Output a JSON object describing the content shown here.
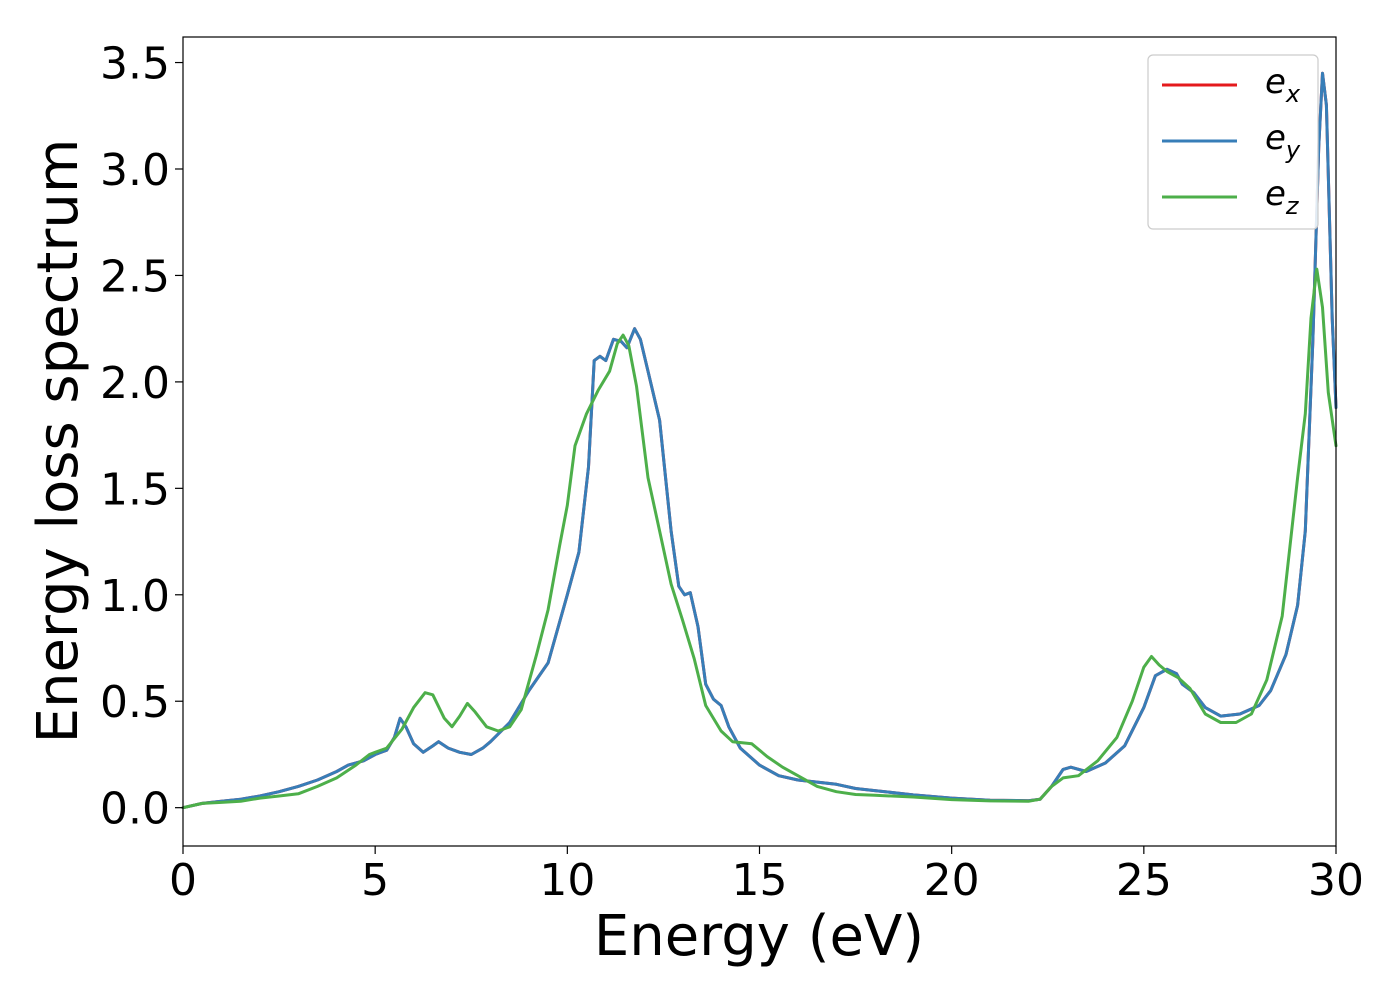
{
  "chart_data": {
    "type": "line",
    "xlabel": "Energy (eV)",
    "ylabel": "Energy loss spectrum",
    "xlim": [
      0,
      30
    ],
    "ylim": [
      -0.18,
      3.62
    ],
    "xticks": [
      0,
      5,
      10,
      15,
      20,
      25,
      30
    ],
    "xtick_labels": [
      "0",
      "5",
      "10",
      "15",
      "20",
      "25",
      "30"
    ],
    "yticks": [
      0.0,
      0.5,
      1.0,
      1.5,
      2.0,
      2.5,
      3.0,
      3.5
    ],
    "ytick_labels": [
      "0.0",
      "0.5",
      "1.0",
      "1.5",
      "2.0",
      "2.5",
      "3.0",
      "3.5"
    ],
    "grid": false,
    "legend_position": "top-right",
    "series": [
      {
        "name": "e_x",
        "legend_base": "e",
        "legend_sub": "x",
        "color": "#e41a1c",
        "points": [
          [
            0,
            0.0
          ],
          [
            0.5,
            0.02
          ],
          [
            1,
            0.03
          ],
          [
            1.5,
            0.04
          ],
          [
            2,
            0.055
          ],
          [
            2.5,
            0.075
          ],
          [
            3,
            0.1
          ],
          [
            3.5,
            0.13
          ],
          [
            4,
            0.17
          ],
          [
            4.3,
            0.2
          ],
          [
            4.7,
            0.22
          ],
          [
            5,
            0.25
          ],
          [
            5.3,
            0.27
          ],
          [
            5.5,
            0.33
          ],
          [
            5.65,
            0.42
          ],
          [
            5.8,
            0.38
          ],
          [
            6,
            0.3
          ],
          [
            6.25,
            0.26
          ],
          [
            6.5,
            0.29
          ],
          [
            6.65,
            0.31
          ],
          [
            6.9,
            0.28
          ],
          [
            7.2,
            0.26
          ],
          [
            7.5,
            0.25
          ],
          [
            7.8,
            0.28
          ],
          [
            8,
            0.31
          ],
          [
            8.5,
            0.4
          ],
          [
            9,
            0.55
          ],
          [
            9.5,
            0.68
          ],
          [
            10,
            1.0
          ],
          [
            10.3,
            1.2
          ],
          [
            10.55,
            1.6
          ],
          [
            10.7,
            2.1
          ],
          [
            10.85,
            2.12
          ],
          [
            11,
            2.1
          ],
          [
            11.2,
            2.2
          ],
          [
            11.4,
            2.19
          ],
          [
            11.55,
            2.16
          ],
          [
            11.75,
            2.25
          ],
          [
            11.9,
            2.2
          ],
          [
            12.1,
            2.05
          ],
          [
            12.4,
            1.82
          ],
          [
            12.7,
            1.3
          ],
          [
            12.9,
            1.04
          ],
          [
            13.05,
            1.0
          ],
          [
            13.2,
            1.01
          ],
          [
            13.4,
            0.85
          ],
          [
            13.6,
            0.58
          ],
          [
            13.8,
            0.51
          ],
          [
            14,
            0.48
          ],
          [
            14.2,
            0.38
          ],
          [
            14.5,
            0.28
          ],
          [
            15,
            0.2
          ],
          [
            15.5,
            0.15
          ],
          [
            16,
            0.13
          ],
          [
            17,
            0.11
          ],
          [
            17.5,
            0.09
          ],
          [
            18,
            0.08
          ],
          [
            19,
            0.06
          ],
          [
            20,
            0.045
          ],
          [
            21,
            0.035
          ],
          [
            22,
            0.033
          ],
          [
            22.3,
            0.04
          ],
          [
            22.6,
            0.1
          ],
          [
            22.9,
            0.18
          ],
          [
            23.1,
            0.19
          ],
          [
            23.5,
            0.17
          ],
          [
            24,
            0.21
          ],
          [
            24.5,
            0.29
          ],
          [
            25,
            0.47
          ],
          [
            25.3,
            0.62
          ],
          [
            25.6,
            0.65
          ],
          [
            25.85,
            0.63
          ],
          [
            26,
            0.58
          ],
          [
            26.3,
            0.54
          ],
          [
            26.6,
            0.47
          ],
          [
            27,
            0.43
          ],
          [
            27.5,
            0.44
          ],
          [
            28,
            0.48
          ],
          [
            28.3,
            0.55
          ],
          [
            28.7,
            0.72
          ],
          [
            29,
            0.95
          ],
          [
            29.2,
            1.3
          ],
          [
            29.4,
            2.2
          ],
          [
            29.55,
            3.1
          ],
          [
            29.65,
            3.45
          ],
          [
            29.75,
            3.3
          ],
          [
            29.9,
            2.3
          ],
          [
            30,
            1.88
          ]
        ]
      },
      {
        "name": "e_y",
        "legend_base": "e",
        "legend_sub": "y",
        "color": "#377eb8",
        "points": [
          [
            0,
            0.0
          ],
          [
            0.5,
            0.02
          ],
          [
            1,
            0.03
          ],
          [
            1.5,
            0.04
          ],
          [
            2,
            0.055
          ],
          [
            2.5,
            0.075
          ],
          [
            3,
            0.1
          ],
          [
            3.5,
            0.13
          ],
          [
            4,
            0.17
          ],
          [
            4.3,
            0.2
          ],
          [
            4.7,
            0.22
          ],
          [
            5,
            0.25
          ],
          [
            5.3,
            0.27
          ],
          [
            5.5,
            0.33
          ],
          [
            5.65,
            0.42
          ],
          [
            5.8,
            0.38
          ],
          [
            6,
            0.3
          ],
          [
            6.25,
            0.26
          ],
          [
            6.5,
            0.29
          ],
          [
            6.65,
            0.31
          ],
          [
            6.9,
            0.28
          ],
          [
            7.2,
            0.26
          ],
          [
            7.5,
            0.25
          ],
          [
            7.8,
            0.28
          ],
          [
            8,
            0.31
          ],
          [
            8.5,
            0.4
          ],
          [
            9,
            0.55
          ],
          [
            9.5,
            0.68
          ],
          [
            10,
            1.0
          ],
          [
            10.3,
            1.2
          ],
          [
            10.55,
            1.6
          ],
          [
            10.7,
            2.1
          ],
          [
            10.85,
            2.12
          ],
          [
            11,
            2.1
          ],
          [
            11.2,
            2.2
          ],
          [
            11.4,
            2.19
          ],
          [
            11.55,
            2.16
          ],
          [
            11.75,
            2.25
          ],
          [
            11.9,
            2.2
          ],
          [
            12.1,
            2.05
          ],
          [
            12.4,
            1.82
          ],
          [
            12.7,
            1.3
          ],
          [
            12.9,
            1.04
          ],
          [
            13.05,
            1.0
          ],
          [
            13.2,
            1.01
          ],
          [
            13.4,
            0.85
          ],
          [
            13.6,
            0.58
          ],
          [
            13.8,
            0.51
          ],
          [
            14,
            0.48
          ],
          [
            14.2,
            0.38
          ],
          [
            14.5,
            0.28
          ],
          [
            15,
            0.2
          ],
          [
            15.5,
            0.15
          ],
          [
            16,
            0.13
          ],
          [
            17,
            0.11
          ],
          [
            17.5,
            0.09
          ],
          [
            18,
            0.08
          ],
          [
            19,
            0.06
          ],
          [
            20,
            0.045
          ],
          [
            21,
            0.035
          ],
          [
            22,
            0.033
          ],
          [
            22.3,
            0.04
          ],
          [
            22.6,
            0.1
          ],
          [
            22.9,
            0.18
          ],
          [
            23.1,
            0.19
          ],
          [
            23.5,
            0.17
          ],
          [
            24,
            0.21
          ],
          [
            24.5,
            0.29
          ],
          [
            25,
            0.47
          ],
          [
            25.3,
            0.62
          ],
          [
            25.6,
            0.65
          ],
          [
            25.85,
            0.63
          ],
          [
            26,
            0.58
          ],
          [
            26.3,
            0.54
          ],
          [
            26.6,
            0.47
          ],
          [
            27,
            0.43
          ],
          [
            27.5,
            0.44
          ],
          [
            28,
            0.48
          ],
          [
            28.3,
            0.55
          ],
          [
            28.7,
            0.72
          ],
          [
            29,
            0.95
          ],
          [
            29.2,
            1.3
          ],
          [
            29.4,
            2.2
          ],
          [
            29.55,
            3.1
          ],
          [
            29.65,
            3.45
          ],
          [
            29.75,
            3.3
          ],
          [
            29.9,
            2.3
          ],
          [
            30,
            1.88
          ]
        ]
      },
      {
        "name": "e_z",
        "legend_base": "e",
        "legend_sub": "z",
        "color": "#4daf4a",
        "points": [
          [
            0,
            0.0
          ],
          [
            0.5,
            0.02
          ],
          [
            1,
            0.025
          ],
          [
            1.5,
            0.03
          ],
          [
            2,
            0.045
          ],
          [
            2.5,
            0.055
          ],
          [
            3,
            0.065
          ],
          [
            3.5,
            0.1
          ],
          [
            4,
            0.14
          ],
          [
            4.5,
            0.2
          ],
          [
            4.85,
            0.25
          ],
          [
            5,
            0.26
          ],
          [
            5.3,
            0.28
          ],
          [
            5.7,
            0.37
          ],
          [
            6,
            0.47
          ],
          [
            6.3,
            0.54
          ],
          [
            6.5,
            0.53
          ],
          [
            6.8,
            0.42
          ],
          [
            7,
            0.38
          ],
          [
            7.2,
            0.43
          ],
          [
            7.4,
            0.49
          ],
          [
            7.6,
            0.45
          ],
          [
            7.9,
            0.38
          ],
          [
            8.2,
            0.36
          ],
          [
            8.5,
            0.38
          ],
          [
            8.8,
            0.46
          ],
          [
            9.2,
            0.72
          ],
          [
            9.5,
            0.93
          ],
          [
            9.8,
            1.23
          ],
          [
            10,
            1.42
          ],
          [
            10.2,
            1.7
          ],
          [
            10.5,
            1.85
          ],
          [
            10.8,
            1.96
          ],
          [
            11.1,
            2.05
          ],
          [
            11.3,
            2.18
          ],
          [
            11.45,
            2.22
          ],
          [
            11.6,
            2.17
          ],
          [
            11.8,
            1.98
          ],
          [
            12.1,
            1.55
          ],
          [
            12.4,
            1.3
          ],
          [
            12.7,
            1.05
          ],
          [
            13,
            0.88
          ],
          [
            13.3,
            0.7
          ],
          [
            13.6,
            0.48
          ],
          [
            14,
            0.36
          ],
          [
            14.3,
            0.31
          ],
          [
            14.8,
            0.3
          ],
          [
            15.2,
            0.24
          ],
          [
            15.6,
            0.19
          ],
          [
            16,
            0.15
          ],
          [
            16.5,
            0.1
          ],
          [
            17,
            0.075
          ],
          [
            17.5,
            0.062
          ],
          [
            18,
            0.058
          ],
          [
            19,
            0.05
          ],
          [
            20,
            0.038
          ],
          [
            21,
            0.032
          ],
          [
            22,
            0.03
          ],
          [
            22.3,
            0.04
          ],
          [
            22.6,
            0.1
          ],
          [
            22.9,
            0.14
          ],
          [
            23.3,
            0.15
          ],
          [
            23.8,
            0.22
          ],
          [
            24.3,
            0.33
          ],
          [
            24.7,
            0.5
          ],
          [
            25,
            0.66
          ],
          [
            25.2,
            0.71
          ],
          [
            25.4,
            0.67
          ],
          [
            25.6,
            0.64
          ],
          [
            25.9,
            0.61
          ],
          [
            26.2,
            0.56
          ],
          [
            26.6,
            0.44
          ],
          [
            27,
            0.4
          ],
          [
            27.4,
            0.4
          ],
          [
            27.8,
            0.44
          ],
          [
            28.2,
            0.6
          ],
          [
            28.6,
            0.9
          ],
          [
            29,
            1.55
          ],
          [
            29.2,
            1.85
          ],
          [
            29.35,
            2.3
          ],
          [
            29.5,
            2.53
          ],
          [
            29.65,
            2.35
          ],
          [
            29.8,
            1.95
          ],
          [
            30,
            1.7
          ]
        ]
      }
    ]
  }
}
